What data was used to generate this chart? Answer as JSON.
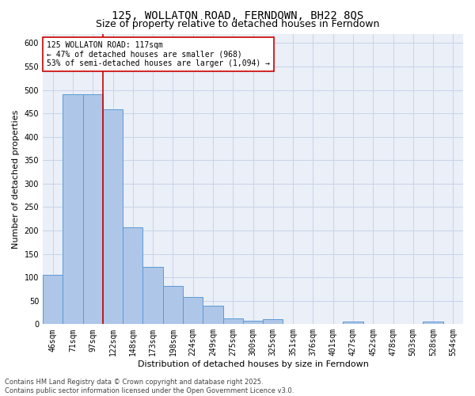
{
  "title": "125, WOLLATON ROAD, FERNDOWN, BH22 8QS",
  "subtitle": "Size of property relative to detached houses in Ferndown",
  "xlabel": "Distribution of detached houses by size in Ferndown",
  "ylabel": "Number of detached properties",
  "categories": [
    "46sqm",
    "71sqm",
    "97sqm",
    "122sqm",
    "148sqm",
    "173sqm",
    "198sqm",
    "224sqm",
    "249sqm",
    "275sqm",
    "300sqm",
    "325sqm",
    "351sqm",
    "376sqm",
    "401sqm",
    "427sqm",
    "452sqm",
    "478sqm",
    "503sqm",
    "528sqm",
    "554sqm"
  ],
  "values": [
    105,
    490,
    490,
    458,
    207,
    122,
    82,
    58,
    39,
    13,
    8,
    10,
    0,
    0,
    0,
    5,
    0,
    0,
    0,
    5,
    0
  ],
  "bar_color": "#aec6e8",
  "bar_edge_color": "#5b9bd5",
  "vline_x_index": 3,
  "vline_color": "#cc0000",
  "annotation_text": "125 WOLLATON ROAD: 117sqm\n← 47% of detached houses are smaller (968)\n53% of semi-detached houses are larger (1,094) →",
  "annotation_box_color": "#ffffff",
  "annotation_box_edge": "#cc0000",
  "ylim": [
    0,
    620
  ],
  "yticks": [
    0,
    50,
    100,
    150,
    200,
    250,
    300,
    350,
    400,
    450,
    500,
    550,
    600
  ],
  "grid_color": "#c8d4e8",
  "bg_color": "#eaeff8",
  "footnote": "Contains HM Land Registry data © Crown copyright and database right 2025.\nContains public sector information licensed under the Open Government Licence v3.0.",
  "title_fontsize": 10,
  "subtitle_fontsize": 9,
  "axis_label_fontsize": 8,
  "tick_fontsize": 7,
  "annotation_fontsize": 7,
  "footnote_fontsize": 6
}
